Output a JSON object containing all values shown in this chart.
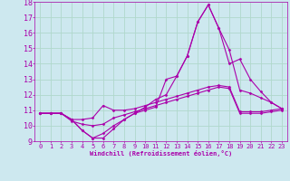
{
  "xlabel": "Windchill (Refroidissement éolien,°C)",
  "background_color": "#cde8ef",
  "grid_color": "#b0d8cc",
  "line_color": "#aa00aa",
  "xlim": [
    -0.5,
    23.5
  ],
  "ylim": [
    9,
    18
  ],
  "xticks": [
    0,
    1,
    2,
    3,
    4,
    5,
    6,
    7,
    8,
    9,
    10,
    11,
    12,
    13,
    14,
    15,
    16,
    17,
    18,
    19,
    20,
    21,
    22,
    23
  ],
  "yticks": [
    9,
    10,
    11,
    12,
    13,
    14,
    15,
    16,
    17,
    18
  ],
  "series": [
    [
      10.8,
      10.8,
      10.8,
      10.4,
      10.4,
      10.5,
      11.3,
      11.0,
      11.0,
      11.1,
      11.3,
      11.5,
      11.7,
      11.9,
      12.1,
      12.3,
      12.5,
      12.6,
      12.5,
      10.9,
      10.9,
      10.9,
      11.0,
      11.1
    ],
    [
      10.8,
      10.8,
      10.8,
      10.3,
      10.1,
      10.0,
      10.1,
      10.5,
      10.7,
      10.9,
      11.1,
      11.3,
      11.5,
      11.7,
      11.9,
      12.1,
      12.3,
      12.5,
      12.4,
      10.8,
      10.8,
      10.8,
      10.9,
      11.0
    ],
    [
      10.8,
      10.8,
      10.8,
      10.4,
      9.7,
      9.2,
      9.2,
      9.8,
      10.4,
      10.8,
      11.0,
      11.2,
      13.0,
      13.2,
      14.5,
      16.7,
      17.8,
      16.3,
      14.9,
      12.3,
      12.1,
      11.8,
      11.5,
      11.1
    ],
    [
      10.8,
      10.8,
      10.8,
      10.4,
      9.7,
      9.2,
      9.5,
      10.0,
      10.4,
      10.8,
      11.2,
      11.7,
      12.0,
      13.2,
      14.5,
      16.7,
      17.8,
      16.3,
      14.0,
      14.3,
      13.0,
      12.2,
      11.5,
      11.1
    ]
  ]
}
